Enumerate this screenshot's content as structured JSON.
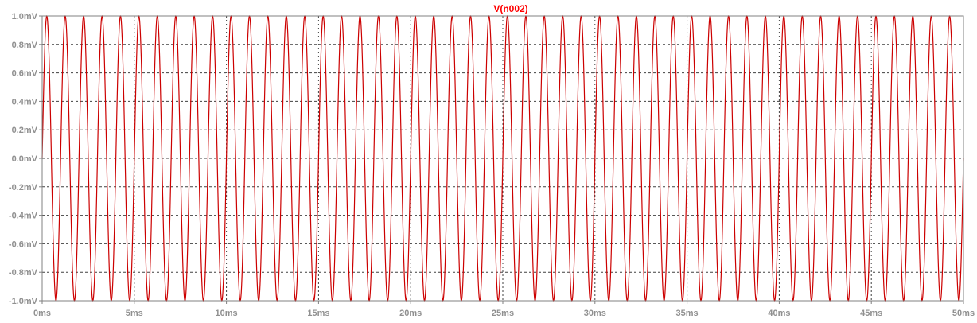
{
  "window": {
    "background": "#ffffff"
  },
  "colors": {
    "trace": "#cc0000",
    "axis": "#808080",
    "grid": "#404040",
    "tick_text": "#909090",
    "title": "#ff0000"
  },
  "chart_data": {
    "type": "line",
    "title": "V(n002)",
    "xlabel": "",
    "ylabel": "",
    "x_unit": "ms",
    "y_unit": "mV",
    "xlim": [
      0,
      50
    ],
    "ylim": [
      -1.0,
      1.0
    ],
    "xticks": [
      0,
      5,
      10,
      15,
      20,
      25,
      30,
      35,
      40,
      45,
      50
    ],
    "yticks": [
      1.0,
      0.8,
      0.6,
      0.4,
      0.2,
      0.0,
      -0.2,
      -0.4,
      -0.6,
      -0.8,
      -1.0
    ],
    "xtick_labels": [
      "0ms",
      "5ms",
      "10ms",
      "15ms",
      "20ms",
      "25ms",
      "30ms",
      "35ms",
      "40ms",
      "45ms",
      "50ms"
    ],
    "ytick_labels": [
      "1.0mV",
      "0.8mV",
      "0.6mV",
      "0.4mV",
      "0.2mV",
      "0.0mV",
      "-0.2mV",
      "-0.4mV",
      "-0.6mV",
      "-0.8mV",
      "-1.0mV"
    ],
    "grid": true,
    "series": [
      {
        "name": "V(n002)",
        "waveform": "sine",
        "amplitude_mV": 1.0,
        "offset_mV": 0.0,
        "frequency_Hz": 1000,
        "phase_deg": 0
      }
    ]
  }
}
